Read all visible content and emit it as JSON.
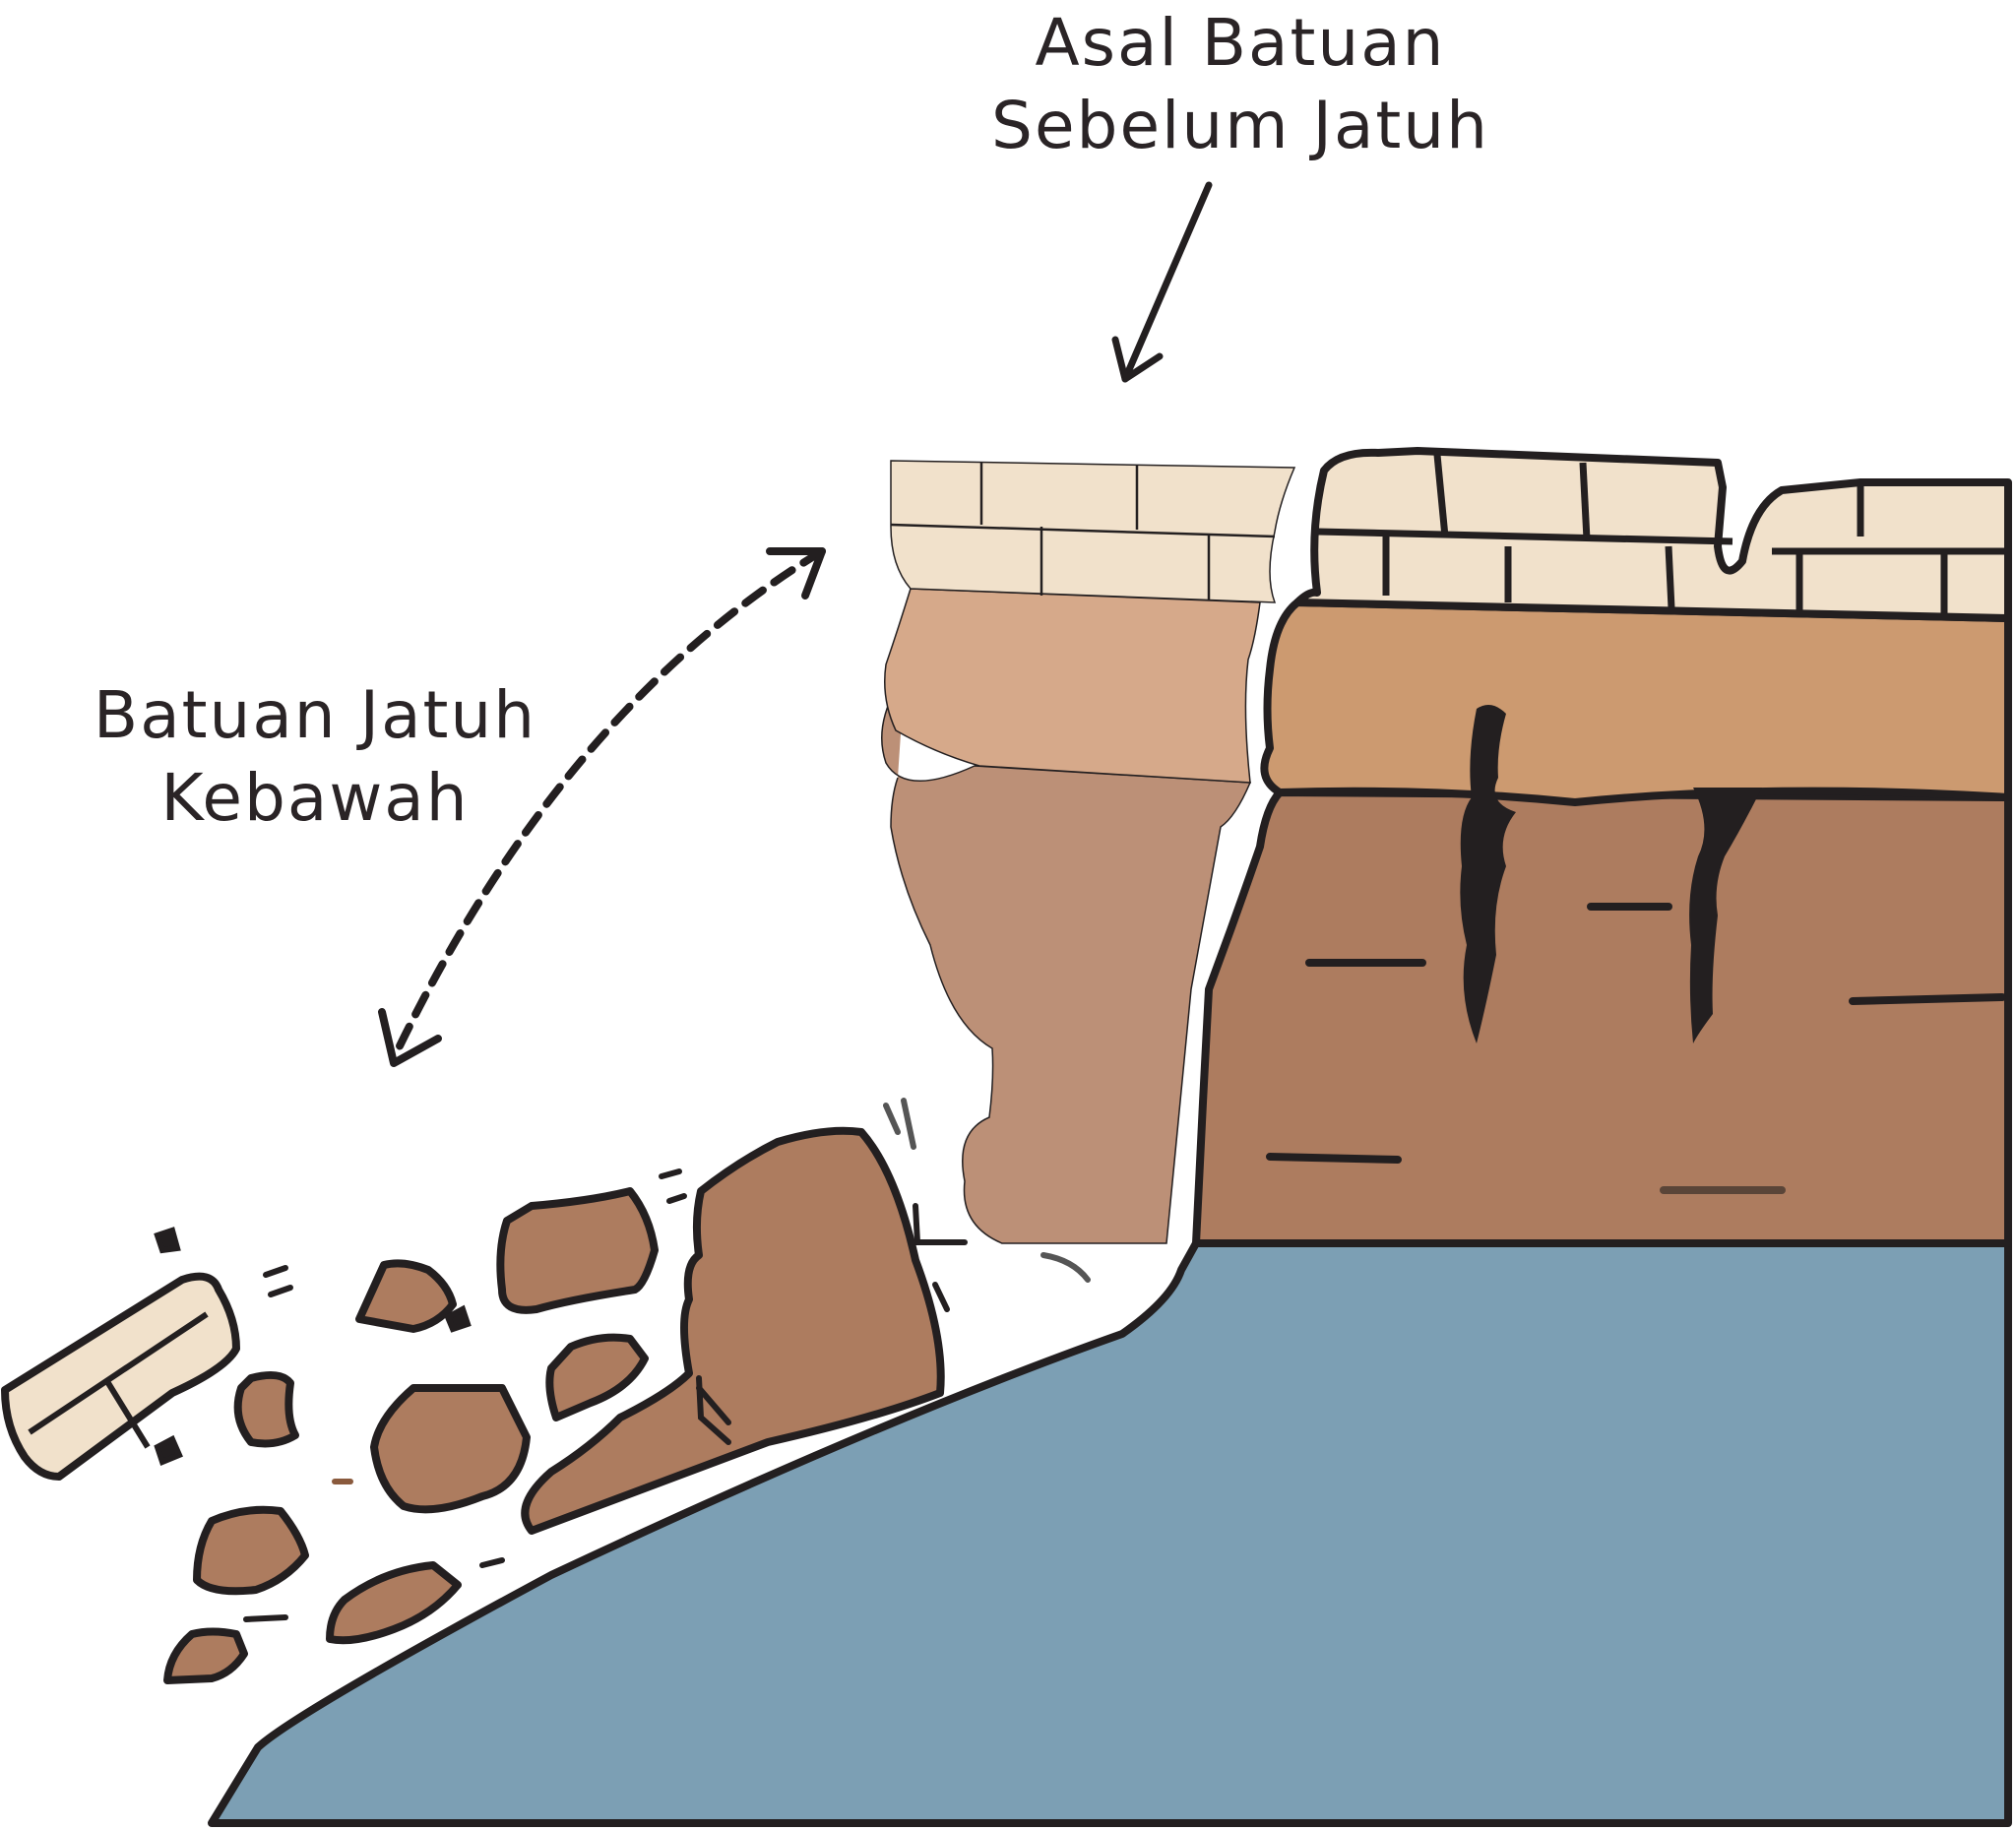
{
  "labels": {
    "origin_line1": "Asal Batuan",
    "origin_line2": "Sebelum Jatuh",
    "fall_line1": "Batuan Jatuh",
    "fall_line2": "Kebawah"
  },
  "colors": {
    "water": "#7c9fb4",
    "rock_dark": "#ad7c5f",
    "rock_mid": "#cc9a70",
    "rock_light": "#f1e1cb",
    "outline": "#231f20",
    "falling_light": "#d6a98a",
    "falling_dark": "#bc9077"
  }
}
